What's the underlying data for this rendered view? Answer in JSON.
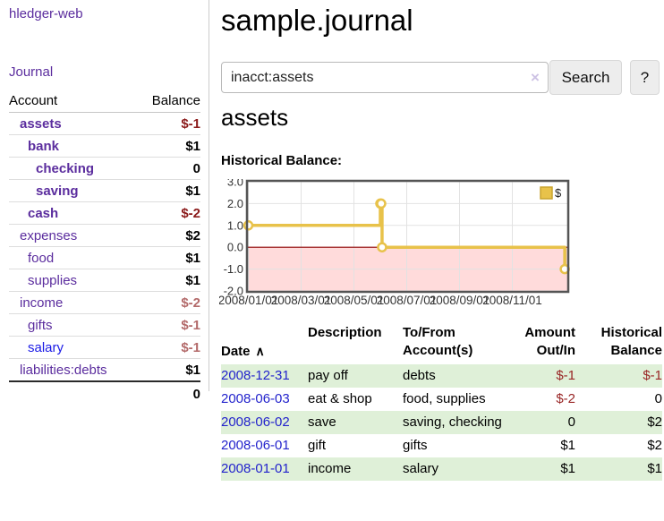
{
  "app": {
    "brand": "hledger-web"
  },
  "palette": {
    "link_purple": "#5b2d9e",
    "link_blue": "#1a1ae6",
    "negative_strong": "#8b1a1a",
    "negative_soft": "#b36a6a",
    "negative_table": "#992626",
    "row_green": "#dff0d8",
    "chart_line_yellow": "#e8c24a",
    "chart_negative_region": "#ffdbdb",
    "chart_zero_line": "#8b0000"
  },
  "icons": {
    "sort_ascending": "∧",
    "clear_search": "×"
  },
  "sidebar": {
    "journal_label": "Journal",
    "accounts": {
      "headers": {
        "account": "Account",
        "balance": "Balance"
      },
      "rows": [
        {
          "name": "assets",
          "balance": "$-1",
          "level": 1,
          "bold": true,
          "balance_class": "neg-strong",
          "link_color": "purple"
        },
        {
          "name": "bank",
          "balance": "$1",
          "level": 2,
          "bold": true,
          "balance_class": "",
          "link_color": "purple"
        },
        {
          "name": "checking",
          "balance": "0",
          "level": 3,
          "bold": true,
          "balance_class": "",
          "link_color": "purple"
        },
        {
          "name": "saving",
          "balance": "$1",
          "level": 3,
          "bold": true,
          "balance_class": "",
          "link_color": "purple"
        },
        {
          "name": "cash",
          "balance": "$-2",
          "level": 2,
          "bold": true,
          "balance_class": "neg-strong",
          "link_color": "purple"
        },
        {
          "name": "expenses",
          "balance": "$2",
          "level": 1,
          "bold": false,
          "balance_class": "",
          "link_color": "purple"
        },
        {
          "name": "food",
          "balance": "$1",
          "level": 2,
          "bold": false,
          "balance_class": "",
          "link_color": "purple"
        },
        {
          "name": "supplies",
          "balance": "$1",
          "level": 2,
          "bold": false,
          "balance_class": "",
          "link_color": "purple"
        },
        {
          "name": "income",
          "balance": "$-2",
          "level": 1,
          "bold": false,
          "balance_class": "neg-soft",
          "link_color": "purple"
        },
        {
          "name": "gifts",
          "balance": "$-1",
          "level": 2,
          "bold": false,
          "balance_class": "neg-soft",
          "link_color": "purple"
        },
        {
          "name": "salary",
          "balance": "$-1",
          "level": 2,
          "bold": false,
          "balance_class": "neg-soft",
          "link_color": "blue"
        },
        {
          "name": "liabilities:debts",
          "balance": "$1",
          "level": 1,
          "bold": false,
          "balance_class": "",
          "link_color": "purple"
        }
      ],
      "total": "0"
    }
  },
  "header": {
    "title": "sample.journal"
  },
  "search": {
    "value": "inacct:assets",
    "button_label": "Search",
    "help_label": "?"
  },
  "account_page": {
    "heading": "assets",
    "chart_label": "Historical Balance:"
  },
  "chart_data": {
    "type": "line",
    "step": true,
    "title": "Historical Balance",
    "legend": "$",
    "legend_position": "top-right",
    "grid": true,
    "ylim": [
      -2.0,
      3.0
    ],
    "y_ticks": [
      3.0,
      2.0,
      1.0,
      0.0,
      -1.0,
      -2.0
    ],
    "x_ticks": [
      "2008/01/01",
      "2008/03/01",
      "2008/05/01",
      "2008/07/01",
      "2008/09/01",
      "2008/11/01"
    ],
    "series": [
      {
        "name": "$",
        "color": "#e8c24a",
        "points": [
          {
            "date": "2008-01-01",
            "value": 1
          },
          {
            "date": "2008-06-01",
            "value": 2
          },
          {
            "date": "2008-06-02",
            "value": 2
          },
          {
            "date": "2008-06-03",
            "value": 0
          },
          {
            "date": "2008-12-31",
            "value": -1
          }
        ]
      }
    ]
  },
  "register": {
    "headers": {
      "date": "Date",
      "description": "Description",
      "accounts": "To/From\nAccount(s)",
      "amount": "Amount\nOut/In",
      "balance": "Historical\nBalance"
    },
    "rows": [
      {
        "date": "2008-12-31",
        "description": "pay off",
        "accounts": "debts",
        "amount": "$-1",
        "balance": "$-1"
      },
      {
        "date": "2008-06-03",
        "description": "eat & shop",
        "accounts": "food, supplies",
        "amount": "$-2",
        "balance": "0"
      },
      {
        "date": "2008-06-02",
        "description": "save",
        "accounts": "saving, checking",
        "amount": "0",
        "balance": "$2"
      },
      {
        "date": "2008-06-01",
        "description": "gift",
        "accounts": "gifts",
        "amount": "$1",
        "balance": "$2"
      },
      {
        "date": "2008-01-01",
        "description": "income",
        "accounts": "salary",
        "amount": "$1",
        "balance": "$1"
      }
    ]
  }
}
